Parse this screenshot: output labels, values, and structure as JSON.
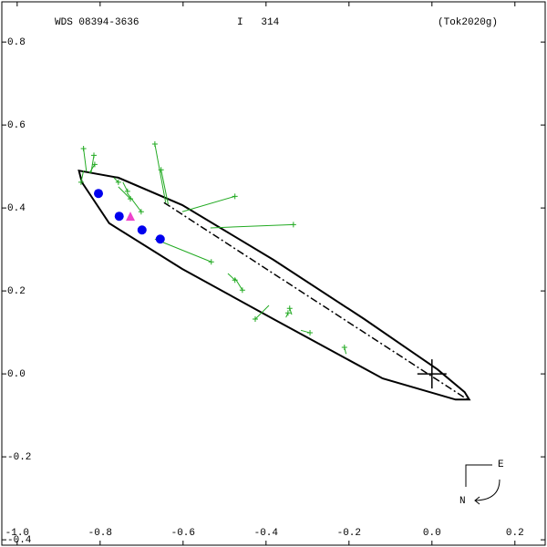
{
  "chart_data": {
    "type": "scatter",
    "header_left": "WDS 08394-3636",
    "header_center": "I   314",
    "header_right": "(Tok2020g)",
    "compass": {
      "east": "E",
      "north": "N"
    },
    "xlim": [
      -1.037,
      0.273
    ],
    "ylim": [
      -0.413,
      0.897
    ],
    "xticks": [
      {
        "value": -1,
        "label": "-1.0"
      },
      -0.8,
      -0.6,
      -0.4,
      -0.2,
      {
        "value": 0,
        "label": "0.0"
      },
      0.2
    ],
    "yticks": [
      0.8,
      0.6,
      0.4,
      0.2,
      {
        "value": 0,
        "label": "0.0"
      },
      -0.2,
      -0.4
    ],
    "orbit": {
      "color": "#000000",
      "x": [
        -0.851,
        -0.756,
        -0.602,
        -0.382,
        -0.163,
        0.013,
        0.079,
        0.09,
        0.057,
        -0.119,
        -0.382,
        -0.602,
        -0.778,
        -0.844
      ],
      "y": [
        0.49,
        0.473,
        0.407,
        0.275,
        0.132,
        0.011,
        -0.044,
        -0.062,
        -0.062,
        -0.011,
        0.132,
        0.253,
        0.363,
        0.462
      ]
    },
    "line_of_nodes": {
      "color": "#000000",
      "x": [
        -0.646,
        0.086
      ],
      "y": [
        0.413,
        -0.062
      ]
    },
    "primary": {
      "color": "#000000",
      "x": [
        0
      ],
      "y": [
        0
      ]
    },
    "observations": {
      "color": "#22aa22",
      "x": [
        -0.84,
        -0.815,
        -0.813,
        -0.846,
        -0.756,
        -0.734,
        -0.727,
        -0.701,
        -0.668,
        -0.653,
        -0.475,
        -0.334,
        -0.532,
        -0.475,
        -0.457,
        -0.426,
        -0.343,
        -0.347,
        -0.294,
        -0.211
      ],
      "y": [
        0.543,
        0.527,
        0.505,
        0.462,
        0.462,
        0.44,
        0.422,
        0.391,
        0.554,
        0.492,
        0.428,
        0.36,
        0.27,
        0.226,
        0.202,
        0.132,
        0.158,
        0.147,
        0.099,
        0.064
      ],
      "predicted_x": [
        -0.833,
        -0.822,
        -0.826,
        -0.84,
        -0.767,
        -0.745,
        -0.756,
        -0.734,
        -0.642,
        -0.636,
        -0.602,
        -0.534,
        -0.668,
        -0.492,
        -0.475,
        -0.393,
        -0.338,
        -0.352,
        -0.316,
        -0.207
      ],
      "predicted_y": [
        0.488,
        0.484,
        0.484,
        0.49,
        0.473,
        0.462,
        0.451,
        0.435,
        0.413,
        0.409,
        0.391,
        0.352,
        0.325,
        0.242,
        0.231,
        0.165,
        0.143,
        0.136,
        0.105,
        0.048
      ]
    },
    "interferometric": {
      "color": "#0000ee",
      "x": [
        -0.804,
        -0.754,
        -0.699,
        -0.655
      ],
      "y": [
        0.435,
        0.38,
        0.347,
        0.325
      ]
    },
    "recent": {
      "color": "#ee44cc",
      "x": [
        -0.727
      ],
      "y": [
        0.378
      ]
    }
  }
}
